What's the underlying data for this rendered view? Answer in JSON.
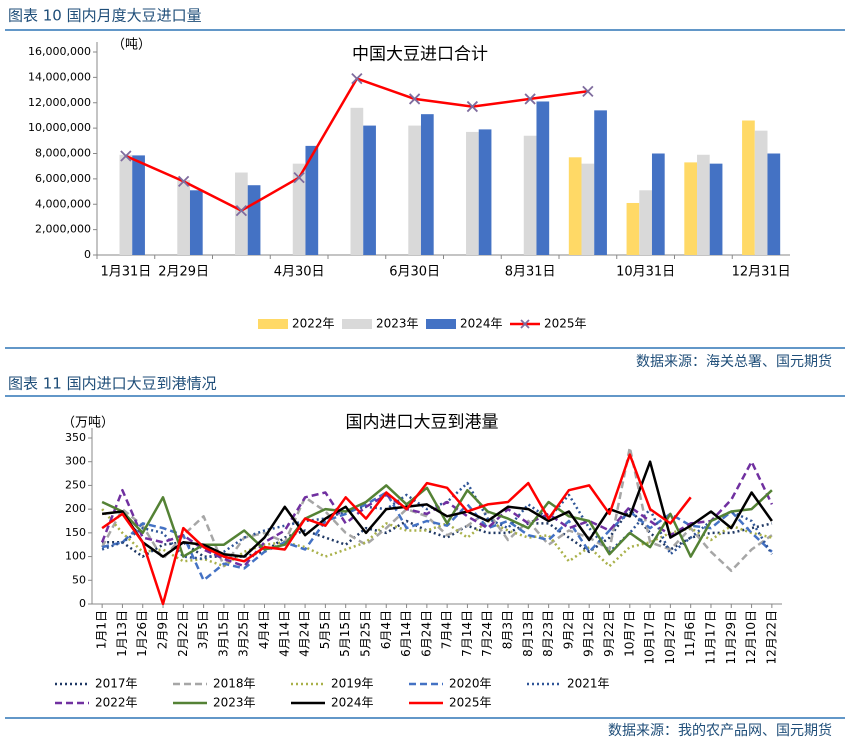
{
  "chart_data": [
    {
      "type": "bar",
      "caption": "图表 10 国内月度大豆进口量",
      "title": "中国大豆进口合计",
      "unit": "（吨）",
      "source": "数据来源：海关总署、国元期货",
      "categories": [
        "1月31日",
        "2月29日",
        null,
        "4月30日",
        null,
        "6月30日",
        null,
        "8月31日",
        null,
        "10月31日",
        null,
        "12月31日"
      ],
      "ylim": [
        0,
        16000000
      ],
      "yticks": [
        0,
        {
          "value": 2000000,
          "label": "2,000,000"
        },
        {
          "value": 4000000,
          "label": "4,000,000"
        },
        {
          "value": 6000000,
          "label": "6,000,000"
        },
        {
          "value": 8000000,
          "label": "8,000,000"
        },
        {
          "value": 10000000,
          "label": "10,000,000"
        },
        {
          "value": 12000000,
          "label": "12,000,000"
        },
        {
          "value": 14000000,
          "label": "14,000,000"
        },
        {
          "value": 16000000,
          "label": "16,000,000"
        }
      ],
      "series": [
        {
          "name": "2022年",
          "color": "#ffd966",
          "values": [
            null,
            null,
            null,
            null,
            null,
            null,
            null,
            null,
            7700000,
            4100000,
            7300000,
            10600000
          ]
        },
        {
          "name": "2023年",
          "color": "#d9d9d9",
          "values": [
            7900000,
            5900000,
            6500000,
            7200000,
            11600000,
            10200000,
            9700000,
            9400000,
            7200000,
            5100000,
            7900000,
            9800000
          ]
        },
        {
          "name": "2024年",
          "color": "#4472c4",
          "values": [
            7850000,
            5100000,
            5500000,
            8600000,
            10200000,
            11100000,
            9900000,
            12100000,
            11400000,
            8000000,
            7200000,
            8000000
          ]
        },
        {
          "name": "2025年",
          "color": "#ff0000",
          "type": "line",
          "marker": "x",
          "marker_color": "#7f6c9e",
          "values": [
            7800000,
            5800000,
            3500000,
            6100000,
            13900000,
            12300000,
            11700000,
            12300000,
            12900000,
            null,
            null,
            null
          ]
        }
      ]
    },
    {
      "type": "line",
      "caption": "图表 11 国内进口大豆到港情况",
      "title": "国内进口大豆到港量",
      "unit": "（万吨）",
      "source": "数据来源：我的农产品网、国元期货",
      "categories": [
        "1月1日",
        "1月13日",
        "1月26日",
        "2月9日",
        "2月22日",
        "3月5日",
        "3月15日",
        "3月25日",
        "4月4日",
        "4月14日",
        "4月24日",
        "5月5日",
        "5月15日",
        "5月25日",
        "6月4日",
        "6月14日",
        "6月24日",
        "7月4日",
        "7月14日",
        "7月24日",
        "8月3日",
        "8月13日",
        "8月23日",
        "9月2日",
        "9月12日",
        "9月22日",
        "10月7日",
        "10月17日",
        "10月27日",
        "11月6日",
        "11月17日",
        "11月29日",
        "12月10日",
        "12月22日"
      ],
      "ylim": [
        0,
        350
      ],
      "yticks": [
        0,
        50,
        100,
        150,
        200,
        250,
        300,
        350
      ],
      "series": [
        {
          "name": "2017年",
          "color": "#1f3864",
          "dash": "dotted",
          "values": [
            130,
            130,
            100,
            125,
            130,
            100,
            100,
            100,
            110,
            140,
            155,
            140,
            125,
            160,
            150,
            175,
            155,
            140,
            165,
            150,
            150,
            170,
            170,
            140,
            110,
            140,
            200,
            150,
            115,
            140,
            150,
            150,
            160,
            170
          ]
        },
        {
          "name": "2018年",
          "color": "#a6a6a6",
          "dash": "dashed",
          "values": [
            120,
            200,
            165,
            95,
            145,
            185,
            80,
            140,
            150,
            130,
            225,
            195,
            150,
            125,
            160,
            200,
            185,
            145,
            165,
            195,
            135,
            175,
            125,
            155,
            140,
            115,
            330,
            130,
            115,
            160,
            110,
            70,
            115,
            145
          ]
        },
        {
          "name": "2019年",
          "color": "#a9b14a",
          "dash": "dotted",
          "values": [
            200,
            150,
            110,
            115,
            90,
            95,
            80,
            110,
            125,
            130,
            120,
            100,
            115,
            130,
            170,
            155,
            155,
            170,
            140,
            175,
            155,
            140,
            145,
            90,
            120,
            80,
            120,
            130,
            150,
            160,
            135,
            165,
            150,
            140
          ]
        },
        {
          "name": "2020年",
          "color": "#4472c4",
          "dash": "dashed",
          "values": [
            120,
            130,
            170,
            160,
            145,
            50,
            85,
            75,
            110,
            130,
            115,
            175,
            190,
            210,
            235,
            160,
            175,
            165,
            210,
            160,
            175,
            145,
            135,
            175,
            110,
            155,
            195,
            160,
            190,
            165,
            160,
            195,
            150,
            110
          ]
        },
        {
          "name": "2021年",
          "color": "#2f5597",
          "dash": "dotted",
          "values": [
            115,
            130,
            160,
            150,
            100,
            95,
            110,
            140,
            155,
            165,
            175,
            180,
            195,
            205,
            200,
            230,
            200,
            215,
            255,
            180,
            160,
            210,
            180,
            230,
            160,
            110,
            150,
            200,
            105,
            140,
            175,
            195,
            175,
            105
          ]
        },
        {
          "name": "2022年",
          "color": "#7030a0",
          "dash": "dashed",
          "values": [
            130,
            240,
            140,
            130,
            145,
            115,
            95,
            80,
            130,
            155,
            225,
            235,
            170,
            205,
            230,
            200,
            190,
            215,
            185,
            160,
            200,
            170,
            190,
            160,
            175,
            155,
            205,
            175,
            145,
            170,
            175,
            220,
            300,
            210
          ]
        },
        {
          "name": "2023年",
          "color": "#548235",
          "dash": "solid",
          "values": [
            215,
            195,
            150,
            225,
            100,
            125,
            125,
            155,
            115,
            125,
            180,
            200,
            195,
            215,
            250,
            210,
            245,
            170,
            240,
            195,
            180,
            160,
            215,
            185,
            175,
            105,
            150,
            120,
            190,
            100,
            175,
            195,
            200,
            240
          ]
        },
        {
          "name": "2024年",
          "color": "#000000",
          "dash": "solid",
          "values": [
            190,
            195,
            130,
            100,
            130,
            125,
            105,
            100,
            140,
            205,
            145,
            180,
            205,
            150,
            200,
            205,
            210,
            185,
            195,
            175,
            205,
            200,
            175,
            195,
            135,
            200,
            185,
            300,
            140,
            165,
            195,
            160,
            235,
            175
          ]
        },
        {
          "name": "2025年",
          "color": "#ff0000",
          "dash": "solid",
          "values": [
            160,
            190,
            130,
            0,
            160,
            120,
            100,
            90,
            120,
            115,
            180,
            165,
            225,
            180,
            235,
            200,
            255,
            245,
            195,
            210,
            215,
            255,
            180,
            240,
            250,
            190,
            315,
            200,
            170,
            225,
            null,
            null,
            null,
            null
          ]
        }
      ]
    }
  ]
}
